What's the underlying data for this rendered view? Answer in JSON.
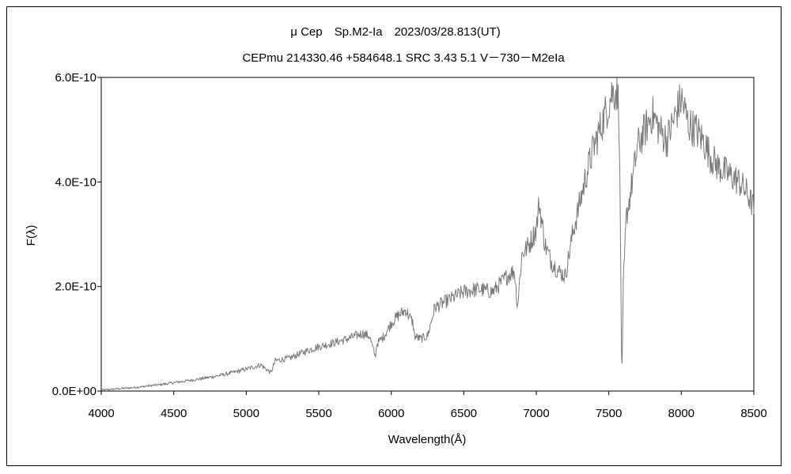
{
  "chart_data": {
    "type": "line",
    "title": "μ Cep　Sp.M2-Ia　2023/03/28.813(UT)",
    "subtitle": "CEPmu 214330.46 +584648.1 SRC 3.43 5.1 V－730－M2eIa",
    "xlabel": "Wavelength(Å)",
    "ylabel": "F(λ)",
    "xlim": [
      4000,
      8500
    ],
    "ylim": [
      0,
      6e-10
    ],
    "x_ticks": [
      "4000",
      "4500",
      "5000",
      "5500",
      "6000",
      "6500",
      "7000",
      "7500",
      "8000",
      "8500"
    ],
    "y_ticks": [
      "0.0E+00",
      "2.0E-10",
      "4.0E-10",
      "6.0E-10"
    ],
    "grid": false,
    "legend": "none",
    "line_color": "#7a7a7a",
    "series": [
      {
        "x": [
          4000,
          4100,
          4200,
          4300,
          4400,
          4500,
          4600,
          4700,
          4800,
          4900,
          5000,
          5100,
          5170,
          5200,
          5300,
          5400,
          5500,
          5600,
          5700,
          5800,
          5850,
          5890,
          5900,
          5950,
          6000,
          6050,
          6100,
          6150,
          6160,
          6200,
          6250,
          6300,
          6400,
          6500,
          6600,
          6700,
          6800,
          6850,
          6870,
          6900,
          6950,
          7000,
          7020,
          7040,
          7060,
          7100,
          7150,
          7200,
          7250,
          7300,
          7350,
          7400,
          7450,
          7500,
          7520,
          7550,
          7570,
          7580,
          7590,
          7600,
          7620,
          7650,
          7700,
          7750,
          7800,
          7850,
          7900,
          7950,
          8000,
          8050,
          8100,
          8150,
          8200,
          8250,
          8300,
          8350,
          8400,
          8450,
          8500
        ],
        "y": [
          2e-12,
          4e-12,
          6e-12,
          9e-12,
          1.2e-11,
          1.6e-11,
          2e-11,
          2.4e-11,
          2.9e-11,
          3.5e-11,
          4.2e-11,
          5e-11,
          3.5e-11,
          5.8e-11,
          6.3e-11,
          7.5e-11,
          8.5e-11,
          9.2e-11,
          1e-10,
          1.1e-10,
          1.05e-10,
          6.5e-11,
          9e-11,
          1.05e-10,
          1.3e-10,
          1.45e-10,
          1.55e-10,
          1.3e-10,
          1.05e-10,
          1e-10,
          1.05e-10,
          1.6e-10,
          1.75e-10,
          1.9e-10,
          1.95e-10,
          1.9e-10,
          2.2e-10,
          2.3e-10,
          1.6e-10,
          2.6e-10,
          2.8e-10,
          3.1e-10,
          3.6e-10,
          3.2e-10,
          2.8e-10,
          2.5e-10,
          2.3e-10,
          2.2e-10,
          3e-10,
          3.6e-10,
          4.2e-10,
          4.7e-10,
          5.1e-10,
          5.5e-10,
          5.7e-10,
          5.75e-10,
          5.5e-10,
          3e-10,
          1e-11,
          2e-10,
          3.3e-10,
          3.8e-10,
          4.7e-10,
          5e-10,
          5.3e-10,
          5e-10,
          4.8e-10,
          5.2e-10,
          5.6e-10,
          5.1e-10,
          5e-10,
          4.8e-10,
          4.5e-10,
          4.3e-10,
          4.2e-10,
          4.1e-10,
          4e-10,
          3.8e-10,
          3.5e-10
        ]
      }
    ]
  }
}
